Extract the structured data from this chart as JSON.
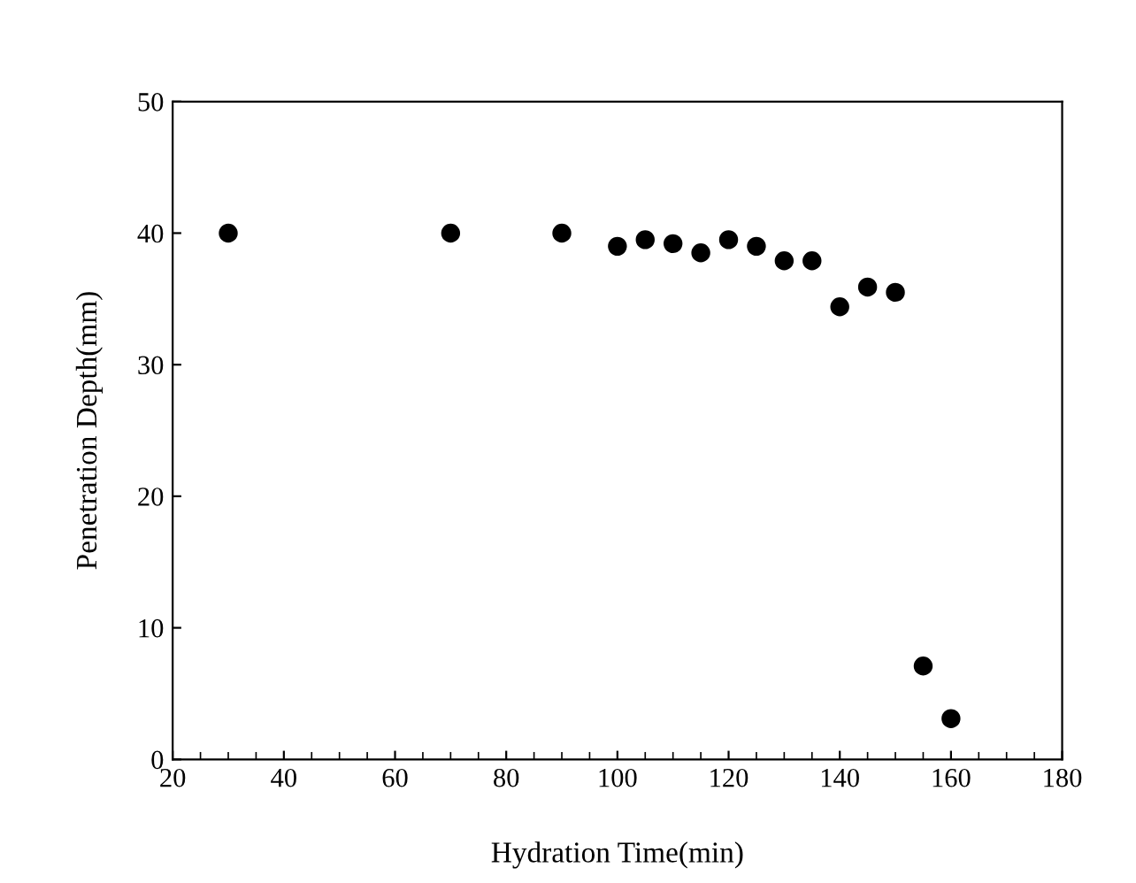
{
  "chart_data": {
    "type": "scatter",
    "xlabel": "Hydration Time(min)",
    "ylabel": "Penetration Depth(mm)",
    "x": [
      30,
      70,
      90,
      100,
      105,
      110,
      115,
      120,
      125,
      130,
      135,
      140,
      145,
      150,
      155,
      160
    ],
    "values": [
      40,
      40,
      40,
      39.0,
      39.5,
      39.2,
      38.5,
      39.5,
      39.0,
      37.9,
      37.9,
      34.4,
      35.9,
      35.5,
      7.1,
      3.1
    ],
    "color": "#000000",
    "marker": "circle",
    "xlim": [
      20,
      180
    ],
    "xticks": [
      20,
      40,
      60,
      80,
      100,
      120,
      140,
      160,
      180
    ],
    "ylim": [
      0,
      50
    ],
    "yticks": [
      0,
      10,
      20,
      30,
      40,
      50
    ],
    "grid": false,
    "legend": false
  }
}
